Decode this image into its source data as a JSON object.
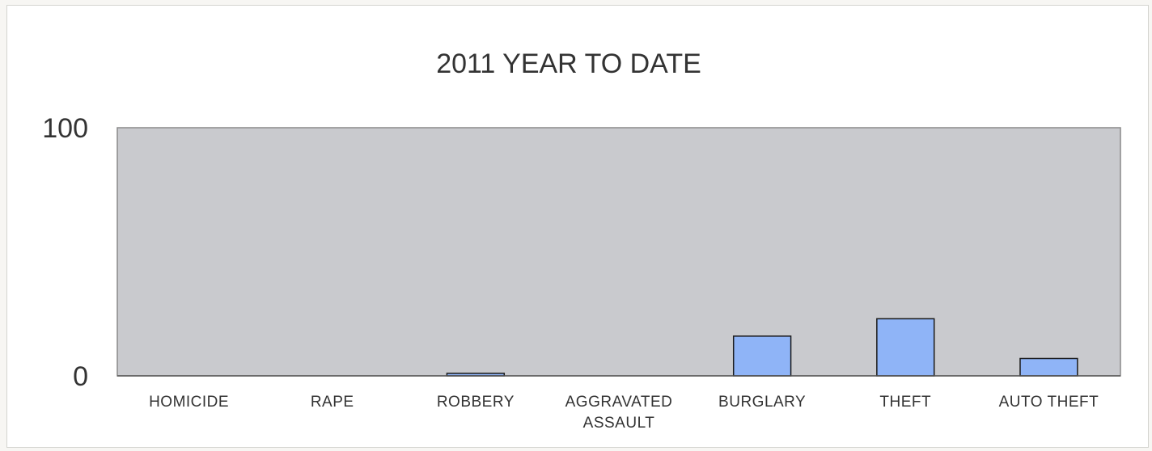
{
  "chart_data": {
    "type": "bar",
    "title": "2011 YEAR TO DATE",
    "xlabel": "",
    "ylabel": "",
    "categories": [
      "HOMICIDE",
      "RAPE",
      "ROBBERY",
      "AGGRAVATED ASSAULT",
      "BURGLARY",
      "THEFT",
      "AUTO THEFT"
    ],
    "category_lines": [
      [
        "HOMICIDE"
      ],
      [
        "RAPE"
      ],
      [
        "ROBBERY"
      ],
      [
        "AGGRAVATED",
        "ASSAULT"
      ],
      [
        "BURGLARY"
      ],
      [
        "THEFT"
      ],
      [
        "AUTO THEFT"
      ]
    ],
    "values": [
      0,
      0,
      1,
      0,
      16,
      23,
      7
    ],
    "ylim": [
      0,
      100
    ],
    "yticks": [
      "0",
      "100"
    ],
    "grid": false,
    "legend": "none",
    "colors": {
      "bar": "#8fb4f7",
      "bar_outline": "#1a1a1a",
      "plot_background": "#c9cace",
      "plot_border": "#8a8a8a"
    }
  }
}
